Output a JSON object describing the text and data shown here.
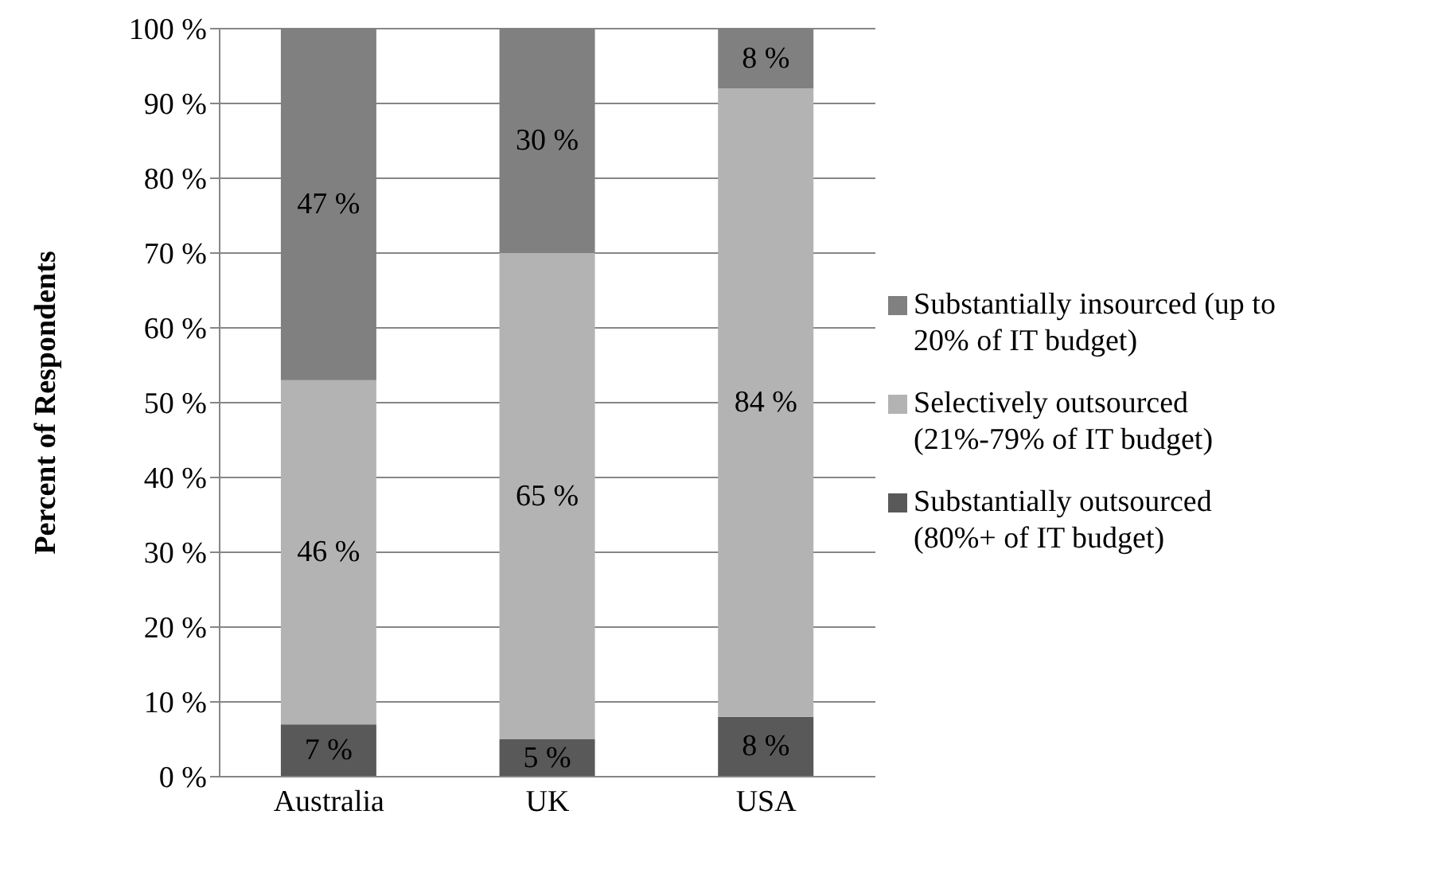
{
  "chart_data": {
    "type": "bar",
    "stacked": true,
    "ylabel": "Percent of Respondents",
    "categories": [
      "Australia",
      "UK",
      "USA"
    ],
    "series": [
      {
        "name": "Substantially outsourced (80%+ of IT budget)",
        "color": "#595959",
        "values": [
          7,
          5,
          8
        ],
        "value_labels": [
          "7 %",
          "5 %",
          "8 %"
        ]
      },
      {
        "name": "Selectively outsourced (21%-79% of IT budget)",
        "color": "#b3b3b3",
        "values": [
          46,
          65,
          84
        ],
        "value_labels": [
          "46 %",
          "65 %",
          "84 %"
        ]
      },
      {
        "name": "Substantially insourced (up to 20% of IT budget)",
        "color": "#808080",
        "values": [
          47,
          30,
          8
        ],
        "value_labels": [
          "47 %",
          "30 %",
          "8 %"
        ]
      }
    ],
    "ylim": [
      0,
      100
    ],
    "yticks": [
      {
        "value": 0,
        "label": "0 %"
      },
      {
        "value": 10,
        "label": "10 %"
      },
      {
        "value": 20,
        "label": "20 %"
      },
      {
        "value": 30,
        "label": "30 %"
      },
      {
        "value": 40,
        "label": "40 %"
      },
      {
        "value": 50,
        "label": "50 %"
      },
      {
        "value": 60,
        "label": "60 %"
      },
      {
        "value": 70,
        "label": "70 %"
      },
      {
        "value": 80,
        "label": "80 %"
      },
      {
        "value": 90,
        "label": "90 %"
      },
      {
        "value": 100,
        "label": "100 %"
      }
    ],
    "grid": "y",
    "legend": "right"
  }
}
